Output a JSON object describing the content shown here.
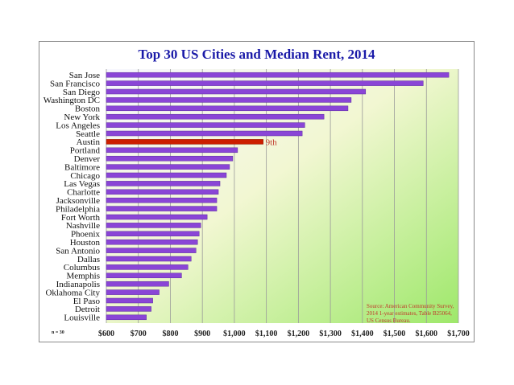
{
  "chart_data": {
    "type": "bar",
    "orientation": "horizontal",
    "title": "Top 30 US Cities and Median Rent, 2014",
    "categories": [
      "San Jose",
      "San Francisco",
      "San Diego",
      "Washington DC",
      "Boston",
      "New York",
      "Los Angeles",
      "Seattle",
      "Austin",
      "Portland",
      "Denver",
      "Baltimore",
      "Chicago",
      "Las Vegas",
      "Charlotte",
      "Jacksonville",
      "Philadelphia",
      "Fort Worth",
      "Nashville",
      "Phoenix",
      "Houston",
      "San Antonio",
      "Dallas",
      "Columbus",
      "Memphis",
      "Indianapolis",
      "Oklahoma City",
      "El Paso",
      "Detroit",
      "Louisville"
    ],
    "values": [
      1670,
      1590,
      1410,
      1365,
      1355,
      1280,
      1220,
      1212,
      1090,
      1010,
      995,
      985,
      975,
      955,
      950,
      945,
      945,
      915,
      895,
      890,
      885,
      880,
      865,
      855,
      835,
      795,
      765,
      745,
      740,
      725
    ],
    "highlight": {
      "category": "Austin",
      "label": "9th",
      "color": "#cc1e00"
    },
    "bar_color": "#8a45d6",
    "xlim": [
      600,
      1700
    ],
    "x_ticks": [
      600,
      700,
      800,
      900,
      1000,
      1100,
      1200,
      1300,
      1400,
      1500,
      1600,
      1700
    ],
    "x_tick_labels": [
      "$600",
      "$700",
      "$800",
      "$900",
      "$1,000",
      "$1,100",
      "$1,200",
      "$1,300",
      "$1,400",
      "$1,500",
      "$1,600",
      "$1,700"
    ],
    "grid": true,
    "n_label": "n = 30",
    "source_lines": [
      "Source: American Community Survey,",
      "2014 1-year estimates, Table B25064,",
      "US Census Bureau."
    ]
  }
}
